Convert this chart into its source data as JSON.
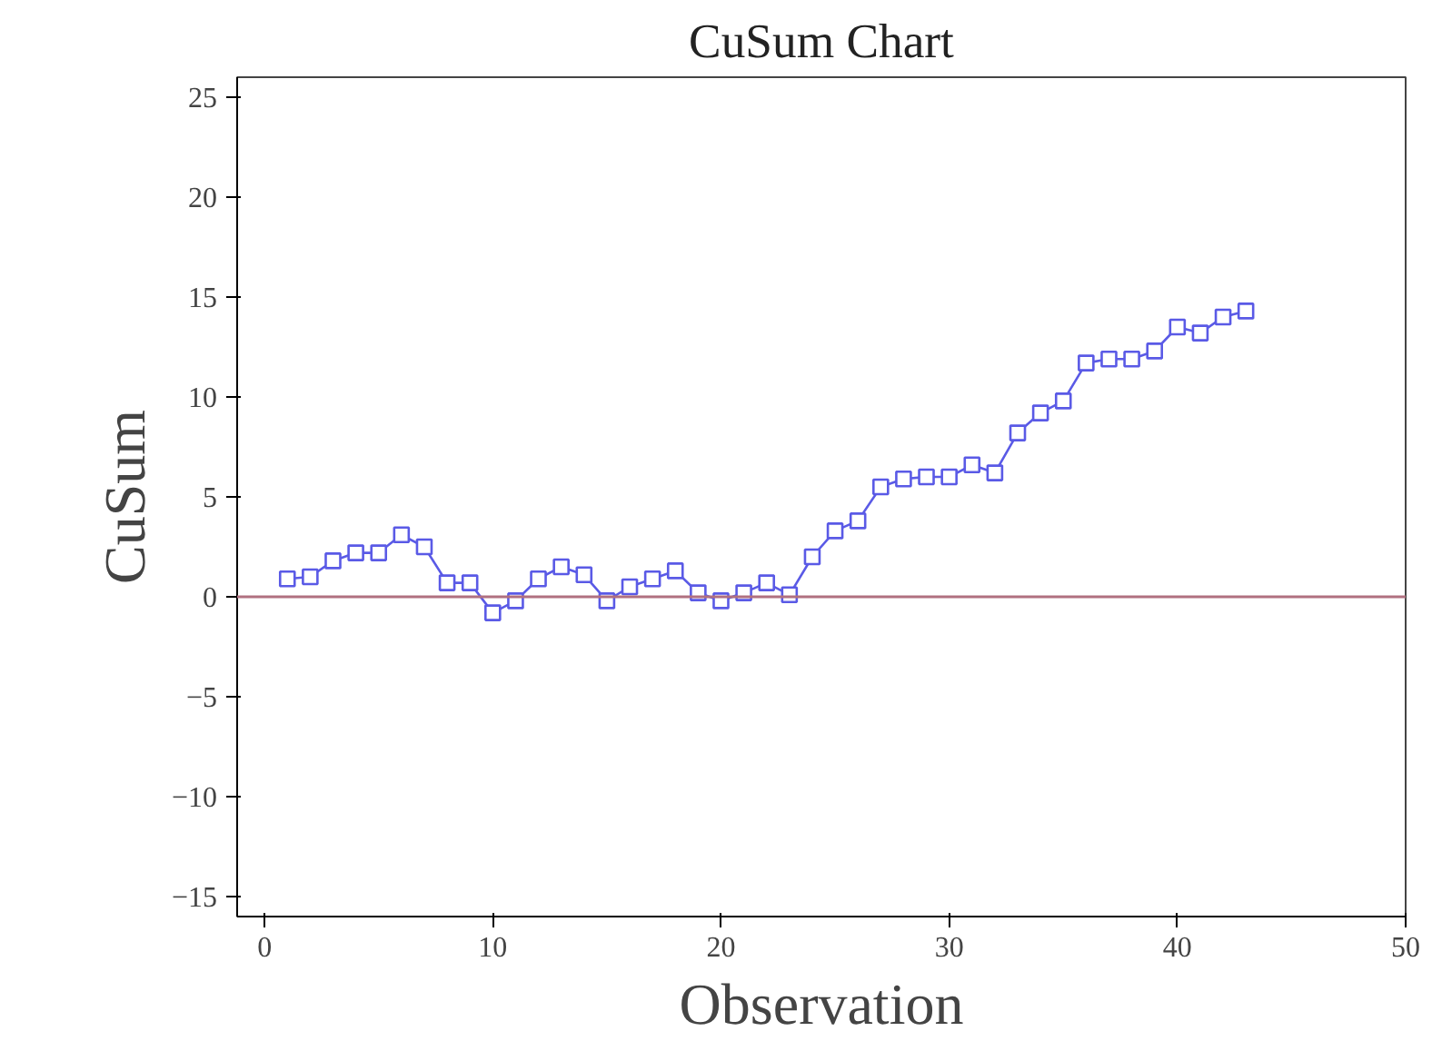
{
  "chart_data": {
    "type": "line",
    "title": "CuSum Chart",
    "xlabel": "Observation",
    "ylabel": "CuSum",
    "x": [
      1,
      2,
      3,
      4,
      5,
      6,
      7,
      8,
      9,
      10,
      11,
      12,
      13,
      14,
      15,
      16,
      17,
      18,
      19,
      20,
      21,
      22,
      23,
      24,
      25,
      26,
      27,
      28,
      29,
      30,
      31,
      32,
      33,
      34,
      35,
      36,
      37,
      38,
      39,
      40,
      41,
      42,
      43
    ],
    "series": [
      {
        "color": "#5a5ae6",
        "values": [
          0.9,
          1.0,
          1.8,
          2.2,
          2.2,
          3.1,
          2.5,
          0.7,
          0.7,
          -0.8,
          -0.2,
          0.9,
          1.5,
          1.1,
          -0.2,
          0.5,
          0.9,
          1.3,
          0.2,
          -0.2,
          0.2,
          0.7,
          0.1,
          2.0,
          3.3,
          3.8,
          5.5,
          5.9,
          6.0,
          6.0,
          6.6,
          6.2,
          8.2,
          9.2,
          9.8,
          11.7,
          11.9,
          11.9,
          12.3,
          13.5,
          13.2,
          14.0,
          14.3
        ]
      }
    ],
    "xlim": [
      -1.2,
      50
    ],
    "ylim": [
      -16,
      26
    ],
    "xticks": [
      0,
      10,
      20,
      30,
      40,
      50
    ],
    "yticks": [
      -15,
      -10,
      -5,
      0,
      5,
      10,
      15,
      20,
      25
    ],
    "ref_lines": [
      {
        "axis": "y",
        "value": 0,
        "color": "#b07080"
      }
    ],
    "marker": "square",
    "grid": false
  }
}
